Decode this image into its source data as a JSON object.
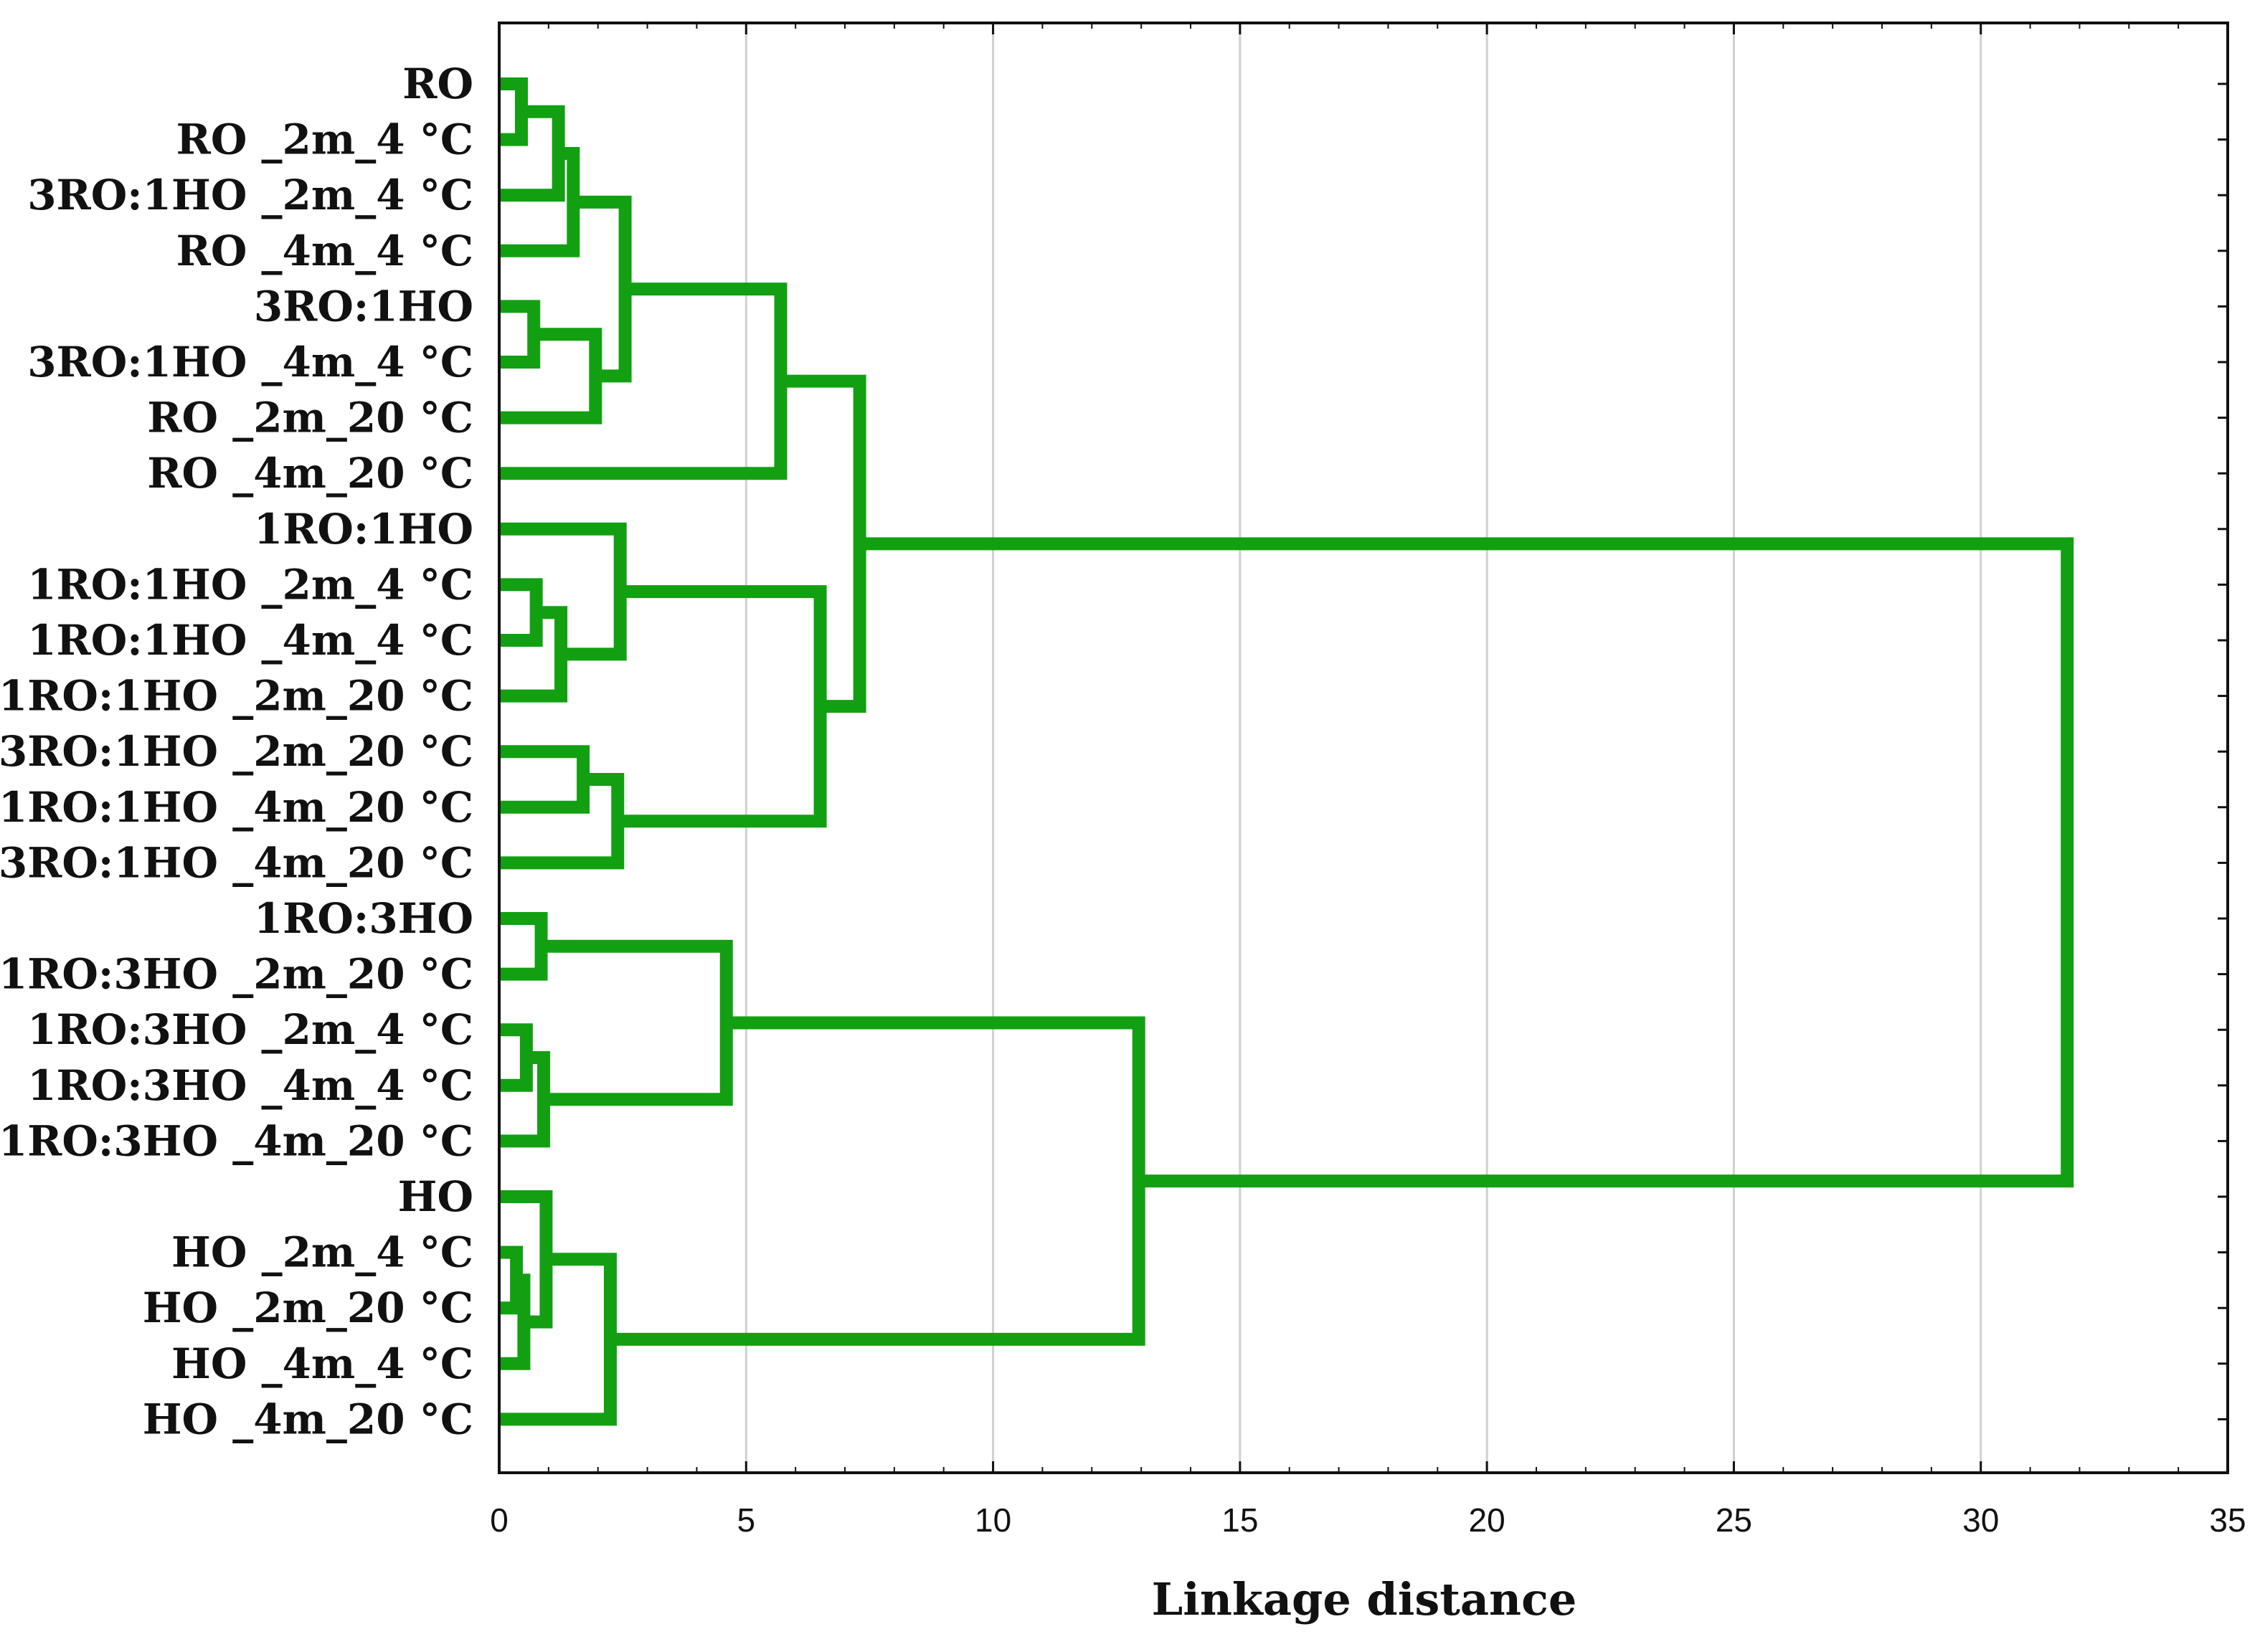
{
  "chart_data": {
    "type": "dendrogram",
    "orientation": "horizontal",
    "xlabel": "Linkage distance",
    "xlim": [
      0,
      35
    ],
    "xticks": [
      0,
      5,
      10,
      15,
      20,
      25,
      30,
      35
    ],
    "grid": true,
    "line_color": "#12a012",
    "leaves": [
      "RO",
      "RO _2m_4 °C",
      "3RO:1HO _2m_4 °C",
      "RO _4m_4 °C",
      "3RO:1HO",
      "3RO:1HO _4m_4 °C",
      "RO _2m_20 °C",
      "RO _4m_20 °C",
      "1RO:1HO",
      "1RO:1HO _2m_4 °C",
      "1RO:1HO _4m_4 °C",
      "1RO:1HO _2m_20 °C",
      "3RO:1HO _2m_20 °C",
      "1RO:1HO _4m_20 °C",
      "3RO:1HO _4m_20 °C",
      "1RO:3HO",
      "1RO:3HO _2m_20 °C",
      "1RO:3HO _2m_4 °C",
      "1RO:3HO _4m_4 °C",
      "1RO:3HO _4m_20 °C",
      "HO",
      "HO _2m_4 °C",
      "HO _2m_20 °C",
      "HO _4m_4 °C",
      "HO _4m_20 °C"
    ],
    "merges": [
      {
        "a": "L0",
        "b": "L1",
        "height": 0.45
      },
      {
        "a": "M0",
        "b": "L2",
        "height": 1.2
      },
      {
        "a": "M1",
        "b": "L3",
        "height": 1.5
      },
      {
        "a": "L4",
        "b": "L5",
        "height": 0.7
      },
      {
        "a": "M3",
        "b": "L6",
        "height": 1.95
      },
      {
        "a": "M2",
        "b": "M4",
        "height": 2.55
      },
      {
        "a": "M5",
        "b": "L7",
        "height": 5.7
      },
      {
        "a": "L9",
        "b": "L10",
        "height": 0.75
      },
      {
        "a": "M7",
        "b": "L11",
        "height": 1.25
      },
      {
        "a": "L8",
        "b": "M8",
        "height": 2.45
      },
      {
        "a": "L12",
        "b": "L13",
        "height": 1.7
      },
      {
        "a": "M10",
        "b": "L14",
        "height": 2.4
      },
      {
        "a": "M9",
        "b": "M11",
        "height": 6.5
      },
      {
        "a": "M6",
        "b": "M12",
        "height": 7.3
      },
      {
        "a": "L15",
        "b": "L16",
        "height": 0.85
      },
      {
        "a": "L17",
        "b": "L18",
        "height": 0.55
      },
      {
        "a": "M15",
        "b": "L19",
        "height": 0.9
      },
      {
        "a": "M14",
        "b": "M16",
        "height": 4.6
      },
      {
        "a": "L21",
        "b": "L22",
        "height": 0.35
      },
      {
        "a": "M18",
        "b": "L23",
        "height": 0.5
      },
      {
        "a": "L20",
        "b": "M19",
        "height": 0.95
      },
      {
        "a": "M20",
        "b": "L24",
        "height": 2.25
      },
      {
        "a": "M17",
        "b": "M21",
        "height": 12.95
      },
      {
        "a": "M13",
        "b": "M22",
        "height": 31.75
      }
    ]
  }
}
